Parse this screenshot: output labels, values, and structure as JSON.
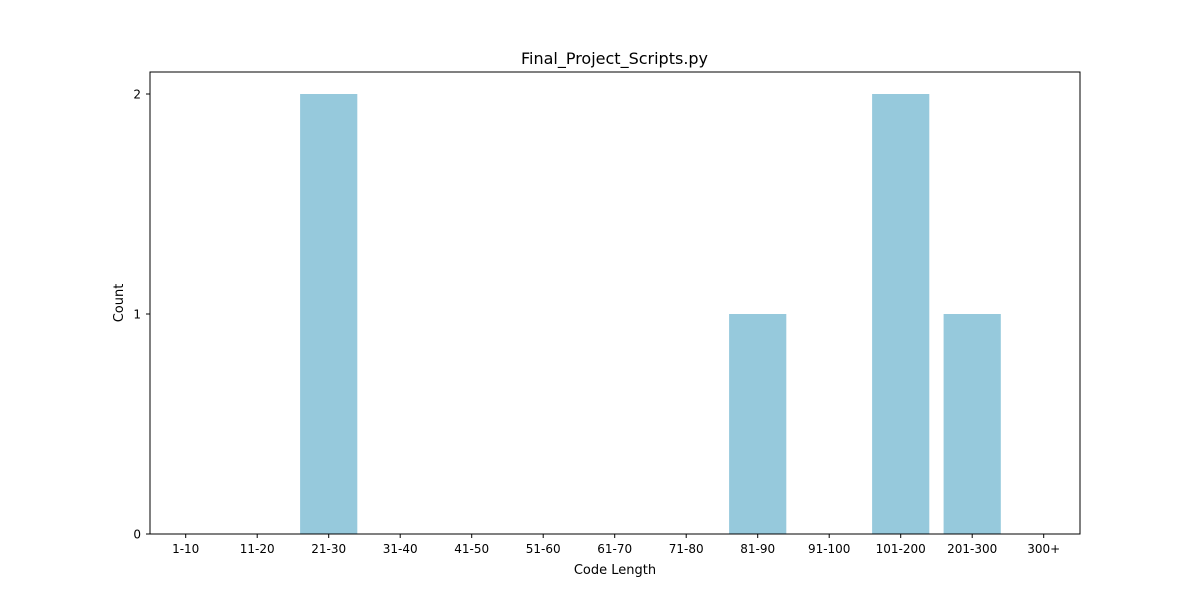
{
  "chart_data": {
    "type": "bar",
    "title": "Final_Project_Scripts.py",
    "xlabel": "Code Length",
    "ylabel": "Count",
    "categories": [
      "1-10",
      "11-20",
      "21-30",
      "31-40",
      "41-50",
      "51-60",
      "61-70",
      "71-80",
      "81-90",
      "91-100",
      "101-200",
      "201-300",
      "300+"
    ],
    "values": [
      0,
      0,
      2,
      0,
      0,
      0,
      0,
      0,
      1,
      0,
      2,
      1,
      0
    ],
    "yticks": [
      0,
      1,
      2
    ],
    "ylim": [
      0,
      2.1
    ],
    "grid": false,
    "legend": "none",
    "bar_color": "#96c9dc"
  }
}
